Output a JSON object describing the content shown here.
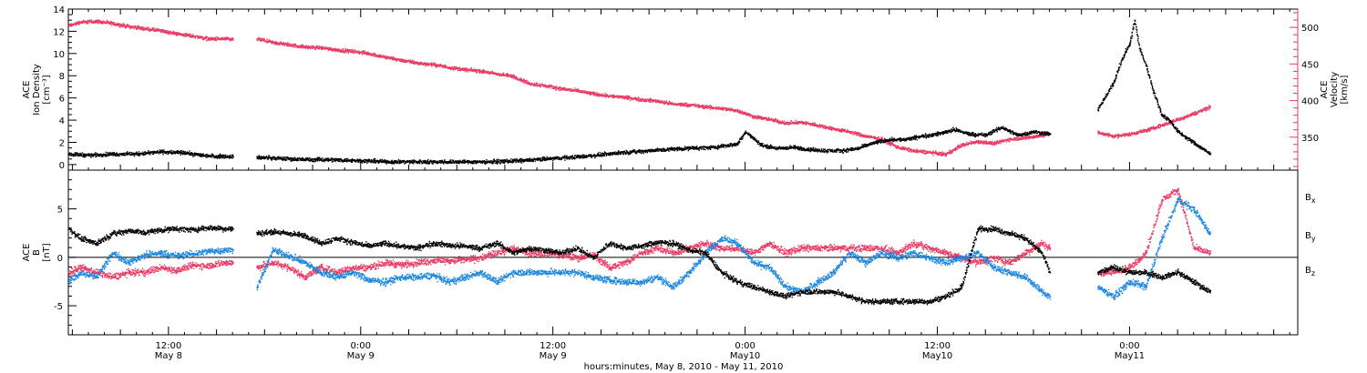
{
  "figure": {
    "x_axis_title": "hours:minutes, May  8, 2010 - May 11, 2010",
    "x_ticks": [
      {
        "hours": 12,
        "time": "12:00",
        "date": "May  8"
      },
      {
        "hours": 24,
        "time": "0:00",
        "date": "May  9"
      },
      {
        "hours": 36,
        "time": "12:00",
        "date": "May  9"
      },
      {
        "hours": 48,
        "time": "0:00",
        "date": "May10"
      },
      {
        "hours": 60,
        "time": "12:00",
        "date": "May10"
      },
      {
        "hours": 72,
        "time": "0:00",
        "date": "May11"
      }
    ],
    "colors": {
      "black": "#000000",
      "pink": "#ea3a64",
      "blue": "#1a86e0"
    }
  },
  "chart_data": [
    {
      "type": "scatter",
      "panel": "top",
      "xlabel": "hours:minutes, May  8, 2010 - May 11, 2010",
      "xlim": [
        5.75,
        82.5
      ],
      "ylabel_left": [
        "ACE",
        "Ion Density",
        "[cm⁻³]"
      ],
      "ylabel_right": [
        "ACE",
        "Velocity",
        "[km/s]"
      ],
      "left_axis": {
        "ylim": [
          -0.5,
          14
        ],
        "ticks": [
          0,
          2,
          4,
          6,
          8,
          10,
          12,
          14
        ],
        "minor_step": 0.5,
        "color": "#000000"
      },
      "right_axis": {
        "ylim": [
          305,
          525
        ],
        "ticks": [
          350,
          400,
          450,
          500
        ],
        "minor_step": 10,
        "color": "#ea3a64"
      },
      "series": [
        {
          "axis": "left",
          "color": "#000000",
          "gaps": [
            [
              16.0,
              17.5
            ],
            [
              67.0,
              70.0
            ]
          ],
          "x": [
            5.75,
            7,
            8.5,
            10,
            11.5,
            13,
            14,
            15,
            16,
            17.5,
            19,
            20.5,
            22,
            24,
            26,
            28,
            30,
            32,
            34,
            36,
            38,
            40,
            42,
            44,
            46,
            47.5,
            48,
            48.5,
            49,
            50,
            51,
            52,
            53,
            54,
            55,
            56,
            57,
            58,
            59,
            60,
            61,
            62,
            63,
            64,
            65,
            66,
            67,
            70,
            70.5,
            71,
            71.5,
            72,
            72.3,
            72.6,
            73,
            73.5,
            74,
            74.5,
            75,
            75.5,
            76,
            76.5,
            77
          ],
          "y": [
            1.0,
            0.9,
            1.0,
            1.0,
            1.2,
            1.1,
            0.9,
            0.8,
            0.8,
            0.7,
            0.6,
            0.5,
            0.5,
            0.4,
            0.3,
            0.3,
            0.3,
            0.3,
            0.4,
            0.6,
            0.8,
            1.1,
            1.3,
            1.5,
            1.6,
            1.9,
            3.0,
            2.4,
            1.8,
            1.5,
            1.6,
            1.4,
            1.3,
            1.3,
            1.5,
            2.0,
            2.3,
            2.3,
            2.6,
            2.8,
            3.2,
            2.8,
            2.7,
            3.4,
            2.7,
            3.0,
            2.8,
            5.0,
            6.2,
            7.5,
            9.5,
            11.0,
            13.0,
            10.5,
            9.0,
            6.5,
            4.5,
            4.0,
            3.0,
            2.5,
            2.0,
            1.5,
            1.0
          ]
        },
        {
          "axis": "right",
          "color": "#ea3a64",
          "gaps": [
            [
              16.0,
              17.5
            ],
            [
              67.0,
              70.0
            ]
          ],
          "x": [
            5.75,
            6.5,
            7.5,
            8.5,
            9.5,
            10.5,
            11.5,
            12.5,
            13.5,
            14.5,
            15.5,
            16,
            17.5,
            18.5,
            19.5,
            20.5,
            21.5,
            22.5,
            23.5,
            24.5,
            25.5,
            26.5,
            27.5,
            28.5,
            29.5,
            30.5,
            31.5,
            32.5,
            33.5,
            34.5,
            35.5,
            36.5,
            37.5,
            38.5,
            39.5,
            40.5,
            41.5,
            42.5,
            43.5,
            44.5,
            45.5,
            46.5,
            47.5,
            48.5,
            49.5,
            50.5,
            51.5,
            52.5,
            53.5,
            54.5,
            55.5,
            56.5,
            57.5,
            58.5,
            59.5,
            60.5,
            61.5,
            62.5,
            63.5,
            64.5,
            65.5,
            66.5,
            67,
            70,
            71,
            72,
            73,
            74,
            75,
            76,
            77
          ],
          "y": [
            503,
            508,
            509,
            506,
            502,
            499,
            496,
            492,
            489,
            485,
            485,
            484,
            485,
            480,
            477,
            474,
            473,
            470,
            468,
            465,
            460,
            456,
            452,
            450,
            446,
            443,
            441,
            437,
            434,
            424,
            421,
            417,
            414,
            410,
            407,
            405,
            402,
            400,
            396,
            395,
            392,
            390,
            387,
            379,
            375,
            370,
            371,
            367,
            362,
            358,
            352,
            348,
            337,
            332,
            330,
            327,
            340,
            345,
            342,
            348,
            350,
            353,
            356,
            357,
            352,
            355,
            360,
            367,
            375,
            383,
            392
          ]
        }
      ]
    },
    {
      "type": "scatter",
      "panel": "bottom",
      "xlabel": "hours:minutes, May  8, 2010 - May 11, 2010",
      "xlim": [
        5.75,
        82.5
      ],
      "ylabel": [
        "ACE",
        "B",
        "[nT]"
      ],
      "ylim": [
        -8,
        9
      ],
      "yticks": [
        -5,
        0,
        5
      ],
      "minor_step": 1,
      "zero_line": true,
      "legend": [
        "Bx",
        "By",
        "Bz"
      ],
      "series": [
        {
          "name": "Bx",
          "color": "#000000",
          "gaps": [
            [
              16.0,
              17.5
            ],
            [
              67.0,
              70.0
            ]
          ],
          "x": [
            5.75,
            6.5,
            7.5,
            8.5,
            9.5,
            10.5,
            11.5,
            12.5,
            13.5,
            14.5,
            15.5,
            16,
            17.5,
            18.5,
            19.5,
            20.5,
            21.5,
            22.5,
            23.5,
            24.5,
            25.5,
            26.5,
            27.5,
            28.5,
            29.5,
            30.5,
            31.5,
            32.5,
            33.5,
            34.5,
            35.5,
            36.5,
            37.5,
            38.5,
            39.5,
            40.5,
            41.5,
            42.5,
            43.5,
            44.5,
            45.5,
            46.5,
            47.5,
            48.5,
            49.5,
            50.5,
            51.5,
            52.5,
            53.5,
            54.5,
            55.5,
            56.5,
            57.5,
            58.5,
            59.5,
            60.5,
            61.5,
            62.5,
            63.5,
            64.5,
            65.5,
            66.5,
            67,
            70,
            71,
            72,
            73,
            74,
            75,
            76,
            77
          ],
          "y": [
            3.0,
            2.0,
            1.5,
            2.5,
            2.8,
            2.6,
            2.9,
            3.0,
            2.9,
            3.1,
            3.0,
            3.0,
            2.5,
            2.7,
            2.5,
            2.3,
            1.5,
            2.0,
            1.6,
            1.2,
            1.5,
            1.2,
            1.0,
            1.5,
            1.3,
            1.2,
            1.0,
            1.5,
            0.5,
            1.0,
            0.8,
            0.5,
            1.0,
            0.0,
            1.5,
            1.0,
            1.2,
            1.6,
            1.5,
            0.8,
            0.5,
            -1.5,
            -2.5,
            -3.0,
            -3.5,
            -4.0,
            -3.5,
            -3.5,
            -3.5,
            -4.0,
            -4.5,
            -4.5,
            -4.5,
            -4.5,
            -4.5,
            -4.0,
            -3.0,
            3.0,
            3.0,
            2.5,
            2.0,
            0.5,
            -1.5,
            -1.5,
            -1.0,
            -1.5,
            -1.5,
            -2.0,
            -1.5,
            -2.5,
            -3.5
          ]
        },
        {
          "name": "By",
          "color": "#1a86e0",
          "gaps": [
            [
              16.0,
              17.5
            ],
            [
              67.0,
              70.0
            ]
          ],
          "x": [
            5.75,
            6.5,
            7.5,
            8.5,
            9.5,
            10.5,
            11.5,
            12.5,
            13.5,
            14.5,
            15.5,
            16,
            17.5,
            18.5,
            19.5,
            20.5,
            21.5,
            22.5,
            23.5,
            24.5,
            25.5,
            26.5,
            27.5,
            28.5,
            29.5,
            30.5,
            31.5,
            32.5,
            33.5,
            34.5,
            35.5,
            36.5,
            37.5,
            38.5,
            39.5,
            40.5,
            41.5,
            42.5,
            43.5,
            44.5,
            45.5,
            46.5,
            47.5,
            48.5,
            49.5,
            50.5,
            51.5,
            52.5,
            53.5,
            54.5,
            55.5,
            56.5,
            57.5,
            58.5,
            59.5,
            60.5,
            61.5,
            62.5,
            63.5,
            64.5,
            65.5,
            66.5,
            67,
            70,
            71,
            72,
            73,
            74,
            75,
            76,
            77
          ],
          "y": [
            -2.5,
            -1.5,
            -2.0,
            0.5,
            -0.5,
            0.3,
            0.5,
            0.2,
            0.4,
            0.7,
            0.8,
            0.8,
            -3.0,
            0.8,
            0.2,
            -0.5,
            -1.5,
            -2.0,
            -1.5,
            -2.3,
            -2.5,
            -2.0,
            -2.0,
            -1.8,
            -2.5,
            -2.0,
            -1.5,
            -2.5,
            -1.5,
            -1.5,
            -1.5,
            -1.5,
            -1.5,
            -2.0,
            -2.3,
            -2.5,
            -2.5,
            -2.0,
            -3.0,
            -1.5,
            0.5,
            2.0,
            1.5,
            -0.5,
            -1.0,
            -3.0,
            -3.5,
            -2.5,
            -1.5,
            0.5,
            -0.5,
            0.5,
            0.0,
            0.5,
            0.0,
            -0.5,
            0.0,
            0.5,
            -1.0,
            -1.5,
            -2.0,
            -3.5,
            -4.0,
            -3.0,
            -4.0,
            -2.5,
            -3.0,
            2.0,
            6.0,
            5.0,
            2.5
          ]
        },
        {
          "name": "Bz",
          "color": "#ea3a64",
          "gaps": [
            [
              16.0,
              17.5
            ],
            [
              67.0,
              70.0
            ]
          ],
          "x": [
            5.75,
            6.5,
            7.5,
            8.5,
            9.5,
            10.5,
            11.5,
            12.5,
            13.5,
            14.5,
            15.5,
            16,
            17.5,
            18.5,
            19.5,
            20.5,
            21.5,
            22.5,
            23.5,
            24.5,
            25.5,
            26.5,
            27.5,
            28.5,
            29.5,
            30.5,
            31.5,
            32.5,
            33.5,
            34.5,
            35.5,
            36.5,
            37.5,
            38.5,
            39.5,
            40.5,
            41.5,
            42.5,
            43.5,
            44.5,
            45.5,
            46.5,
            47.5,
            48.5,
            49.5,
            50.5,
            51.5,
            52.5,
            53.5,
            54.5,
            55.5,
            56.5,
            57.5,
            58.5,
            59.5,
            60.5,
            61.5,
            62.5,
            63.5,
            64.5,
            65.5,
            66.5,
            67,
            70,
            71,
            72,
            73,
            74,
            75,
            76,
            77
          ],
          "y": [
            -1.5,
            -1.0,
            -1.5,
            -2.0,
            -1.5,
            -1.5,
            -1.0,
            -1.3,
            -0.8,
            -0.8,
            -0.5,
            -0.5,
            -1.0,
            -0.5,
            -1.0,
            -2.0,
            -1.0,
            -1.5,
            -1.0,
            -1.0,
            -0.5,
            -0.7,
            -0.5,
            -0.3,
            -0.3,
            -0.2,
            0.0,
            0.5,
            1.0,
            0.5,
            0.5,
            0.3,
            0.0,
            0.3,
            -1.0,
            -0.5,
            0.5,
            1.0,
            0.5,
            1.0,
            1.5,
            1.0,
            1.0,
            0.5,
            1.5,
            0.5,
            1.0,
            1.0,
            1.0,
            1.0,
            1.0,
            1.0,
            0.5,
            1.5,
            1.0,
            0.5,
            0.0,
            -0.5,
            0.0,
            -0.5,
            0.5,
            1.5,
            1.0,
            -1.5,
            -1.5,
            -1.0,
            0.5,
            6.0,
            7.0,
            1.0,
            0.5
          ]
        }
      ]
    }
  ]
}
